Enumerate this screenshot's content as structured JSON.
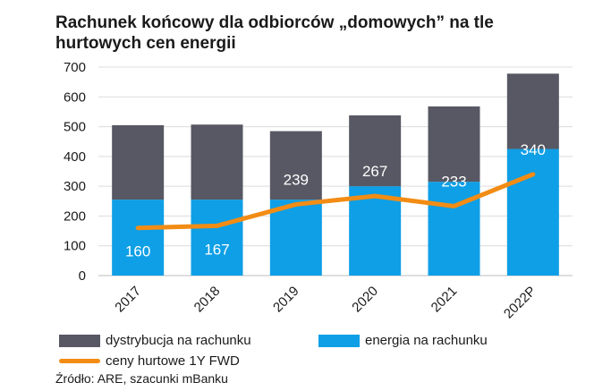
{
  "title": "Rachunek końcowy dla odbiorców „domowych” na tle hurtowych cen energii",
  "source": "Źródło: ARE, szacunki mBanku",
  "colors": {
    "distribution": "#575863",
    "energy": "#0e9fe6",
    "wholesale": "#f28c14"
  },
  "chart_data": {
    "type": "bar",
    "stacked": true,
    "categories": [
      "2017",
      "2018",
      "2019",
      "2020",
      "2021",
      "2022P"
    ],
    "series": [
      {
        "name": "energia na rachunku",
        "values": [
          255,
          255,
          255,
          300,
          315,
          425
        ]
      },
      {
        "name": "dystrybucja na rachunku",
        "values": [
          250,
          252,
          230,
          238,
          253,
          253
        ]
      }
    ],
    "line_series": {
      "name": "ceny hurtowe 1Y FWD",
      "values": [
        160,
        167,
        239,
        267,
        233,
        340
      ]
    },
    "data_labels": [
      "160",
      "167",
      "239",
      "267",
      "233",
      "340"
    ],
    "ylim": [
      0,
      700
    ],
    "yticks": [
      "0",
      "100",
      "200",
      "300",
      "400",
      "500",
      "600",
      "700"
    ],
    "grid": true,
    "legend": "bottom"
  }
}
